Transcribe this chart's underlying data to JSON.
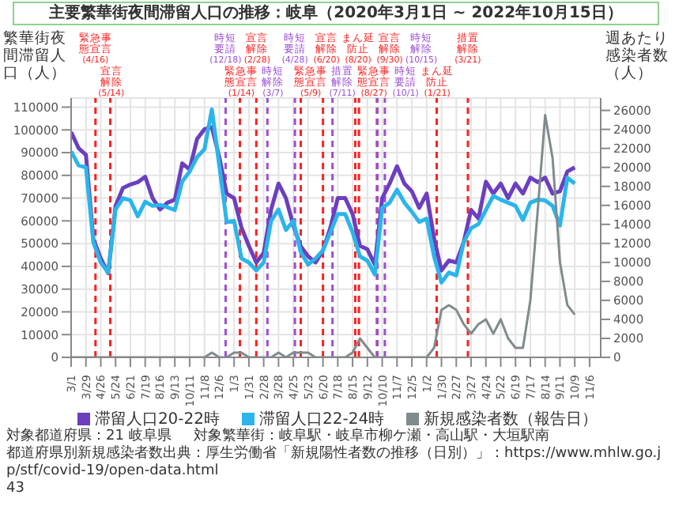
{
  "chart_data": {
    "type": "line",
    "title": "主要繁華街夜間滞留人口の推移：岐阜（2020年3月1日 ~ 2022年10月15日）",
    "ylabel": "繁華街夜間滞留人口（人）",
    "y2label": "週あたり感染者数（人）",
    "x": [
      "2020-03-01",
      "2020-03-15",
      "2020-03-29",
      "2020-04-12",
      "2020-04-26",
      "2020-05-10",
      "2020-05-24",
      "2020-06-07",
      "2020-06-21",
      "2020-07-05",
      "2020-07-19",
      "2020-08-02",
      "2020-08-16",
      "2020-08-30",
      "2020-09-13",
      "2020-09-27",
      "2020-10-11",
      "2020-10-25",
      "2020-11-08",
      "2020-11-22",
      "2020-12-06",
      "2020-12-20",
      "2021-01-03",
      "2021-01-17",
      "2021-01-31",
      "2021-02-14",
      "2021-02-28",
      "2021-03-14",
      "2021-03-28",
      "2021-04-11",
      "2021-04-25",
      "2021-05-09",
      "2021-05-23",
      "2021-06-06",
      "2021-06-20",
      "2021-07-04",
      "2021-07-18",
      "2021-08-01",
      "2021-08-15",
      "2021-08-29",
      "2021-09-12",
      "2021-09-26",
      "2021-10-10",
      "2021-10-24",
      "2021-11-07",
      "2021-11-21",
      "2021-12-05",
      "2021-12-19",
      "2022-01-02",
      "2022-01-16",
      "2022-01-30",
      "2022-02-13",
      "2022-02-27",
      "2022-03-13",
      "2022-03-27",
      "2022-04-10",
      "2022-04-24",
      "2022-05-08",
      "2022-05-22",
      "2022-06-05",
      "2022-06-19",
      "2022-07-03",
      "2022-07-17",
      "2022-07-31",
      "2022-08-14",
      "2022-08-28",
      "2022-09-11",
      "2022-09-25",
      "2022-10-09"
    ],
    "series": [
      {
        "name": "滞留人口20-22時",
        "color": "#6b3fbf",
        "values": [
          99000,
          92000,
          89000,
          52000,
          43500,
          37000,
          66600,
          74500,
          76000,
          77000,
          79400,
          70000,
          65000,
          68000,
          69300,
          85300,
          82600,
          96000,
          100300,
          101200,
          88000,
          72000,
          70000,
          57000,
          49000,
          41700,
          46000,
          65000,
          76400,
          70000,
          58000,
          48800,
          44400,
          41700,
          47000,
          57000,
          70000,
          70000,
          63000,
          49000,
          47500,
          40800,
          70000,
          76400,
          84000,
          76400,
          73000,
          65700,
          72000,
          52400,
          38200,
          42600,
          41700,
          50600,
          64800,
          61000,
          77200,
          72000,
          76400,
          70000,
          76400,
          72000,
          79000,
          77000,
          79000,
          72000,
          73000,
          81700,
          83500
        ]
      },
      {
        "name": "滞留人口22-24時",
        "color": "#2bb5ea",
        "values": [
          90600,
          84400,
          83500,
          50600,
          41700,
          37300,
          65000,
          70000,
          69000,
          62000,
          68400,
          66600,
          67000,
          66000,
          64800,
          77300,
          81700,
          88000,
          91500,
          109000,
          84400,
          59500,
          60000,
          43500,
          41700,
          38200,
          41700,
          60000,
          65000,
          56000,
          60000,
          46200,
          40800,
          43500,
          47000,
          55000,
          63000,
          63000,
          55000,
          44400,
          42500,
          36400,
          65700,
          68000,
          73700,
          68000,
          64000,
          59500,
          61000,
          44400,
          32900,
          37300,
          36000,
          50600,
          56800,
          58600,
          64800,
          71000,
          69300,
          68000,
          66600,
          60400,
          68000,
          69300,
          69000,
          66600,
          58000,
          79000,
          76400
        ]
      },
      {
        "name": "新規感染者数（報告日）",
        "color": "#808b8d",
        "axis": "y2",
        "values": [
          0,
          0,
          0,
          0,
          0,
          0,
          0,
          0,
          0,
          0,
          0,
          0,
          0,
          0,
          0,
          0,
          0,
          0,
          0,
          500,
          0,
          0,
          500,
          500,
          0,
          0,
          0,
          0,
          500,
          0,
          500,
          500,
          500,
          0,
          0,
          0,
          0,
          0,
          500,
          2000,
          1000,
          0,
          0,
          0,
          0,
          0,
          0,
          0,
          0,
          1000,
          5000,
          5500,
          5000,
          3500,
          2500,
          3500,
          4000,
          2500,
          4000,
          2000,
          1000,
          1000,
          6000,
          15500,
          25500,
          21000,
          10000,
          5500,
          4500
        ]
      }
    ],
    "xlim": [
      "2020-03-01",
      "2022-11-27"
    ],
    "xticks": [
      {
        "value": "2020-03-01",
        "label": "3/1"
      },
      {
        "value": "2020-03-29",
        "label": "3/29"
      },
      {
        "value": "2020-04-26",
        "label": "4/26"
      },
      {
        "value": "2020-05-24",
        "label": "5/24"
      },
      {
        "value": "2020-06-21",
        "label": "6/21"
      },
      {
        "value": "2020-07-19",
        "label": "7/19"
      },
      {
        "value": "2020-08-16",
        "label": "8/16"
      },
      {
        "value": "2020-09-13",
        "label": "9/13"
      },
      {
        "value": "2020-10-11",
        "label": "10/11"
      },
      {
        "value": "2020-11-08",
        "label": "11/8"
      },
      {
        "value": "2020-12-06",
        "label": "12/6"
      },
      {
        "value": "2021-01-03",
        "label": "1/3"
      },
      {
        "value": "2021-01-31",
        "label": "1/31"
      },
      {
        "value": "2021-02-28",
        "label": "2/28"
      },
      {
        "value": "2021-03-28",
        "label": "3/28"
      },
      {
        "value": "2021-04-25",
        "label": "4/25"
      },
      {
        "value": "2021-05-23",
        "label": "5/23"
      },
      {
        "value": "2021-06-20",
        "label": "6/20"
      },
      {
        "value": "2021-07-18",
        "label": "7/18"
      },
      {
        "value": "2021-08-15",
        "label": "8/15"
      },
      {
        "value": "2021-09-12",
        "label": "9/12"
      },
      {
        "value": "2021-10-10",
        "label": "10/10"
      },
      {
        "value": "2021-11-07",
        "label": "11/7"
      },
      {
        "value": "2021-12-05",
        "label": "12/5"
      },
      {
        "value": "2022-01-02",
        "label": "1/2"
      },
      {
        "value": "2022-01-30",
        "label": "1/30"
      },
      {
        "value": "2022-02-27",
        "label": "2/27"
      },
      {
        "value": "2022-03-27",
        "label": "3/27"
      },
      {
        "value": "2022-04-24",
        "label": "4/24"
      },
      {
        "value": "2022-05-22",
        "label": "5/22"
      },
      {
        "value": "2022-06-19",
        "label": "6/19"
      },
      {
        "value": "2022-07-17",
        "label": "7/17"
      },
      {
        "value": "2022-08-14",
        "label": "8/14"
      },
      {
        "value": "2022-09-11",
        "label": "9/11"
      },
      {
        "value": "2022-10-09",
        "label": "10/9"
      },
      {
        "value": "2022-11-06",
        "label": "11/6"
      }
    ],
    "ylim": [
      0,
      114000
    ],
    "yticks": [
      0,
      10000,
      20000,
      30000,
      40000,
      50000,
      60000,
      70000,
      80000,
      90000,
      100000,
      110000
    ],
    "y2lim": [
      0,
      27300
    ],
    "y2ticks": [
      0,
      2000,
      4000,
      6000,
      8000,
      10000,
      12000,
      14000,
      16000,
      18000,
      20000,
      22000,
      24000,
      26000
    ],
    "ref_lines": [
      {
        "axis": "x",
        "value": "2020-04-16",
        "label": "緊急事態宣言(4/16)",
        "color": "#ff2020",
        "line_style": "dashed"
      },
      {
        "axis": "x",
        "value": "2020-05-14",
        "label": "宣言解除(5/14)",
        "color": "#ff2020",
        "line_style": "dashed"
      },
      {
        "axis": "x",
        "value": "2020-12-18",
        "label": "時短要請(12/18)",
        "color": "#9b4fd8",
        "line_style": "dashed"
      },
      {
        "axis": "x",
        "value": "2021-01-14",
        "label": "緊急事態宣言(1/14)",
        "color": "#ff2020",
        "line_style": "dashed"
      },
      {
        "axis": "x",
        "value": "2021-02-14",
        "label": "宣言解除(2/28)",
        "color": "#ff2020",
        "line_style": "dashed"
      },
      {
        "axis": "x",
        "value": "2021-03-07",
        "label": "時短解除(3/7)",
        "color": "#9b4fd8",
        "line_style": "dashed"
      },
      {
        "axis": "x",
        "value": "2021-04-28",
        "label": "時短要請(4/28)",
        "color": "#9b4fd8",
        "line_style": "dashed"
      },
      {
        "axis": "x",
        "value": "2021-05-09",
        "label": "緊急事態宣言(5/9)",
        "color": "#ff2020",
        "line_style": "dashed"
      },
      {
        "axis": "x",
        "value": "2021-06-20",
        "label": "宣言解除(6/20)",
        "color": "#ff2020",
        "line_style": "dashed"
      },
      {
        "axis": "x",
        "value": "2021-07-08",
        "label": "措置解除(7/11)",
        "color": "#9b4fd8",
        "line_style": "dashed"
      },
      {
        "axis": "x",
        "value": "2021-08-20",
        "label": "まん延防止(8/20)",
        "color": "#ff2020",
        "line_style": "dashed"
      },
      {
        "axis": "x",
        "value": "2021-08-27",
        "label": "緊急事態宣言(8/27)",
        "color": "#ff2020",
        "line_style": "dashed"
      },
      {
        "axis": "x",
        "value": "2021-09-30",
        "label": "宣言解除(9/30)",
        "color": "#ff2020",
        "line_style": "dashed"
      },
      {
        "axis": "x",
        "value": "2021-10-01",
        "label": "時短要請(10/1)",
        "color": "#9b4fd8",
        "line_style": "dashed"
      },
      {
        "axis": "x",
        "value": "2021-10-15",
        "label": "時短解除(10/15)",
        "color": "#9b4fd8",
        "line_style": "dashed"
      },
      {
        "axis": "x",
        "value": "2022-01-21",
        "label": "まん延防止(1/21)",
        "color": "#ff2020",
        "line_style": "dashed"
      },
      {
        "axis": "x",
        "value": "2022-03-21",
        "label": "措置解除(3/21)",
        "color": "#ff2020",
        "line_style": "dashed"
      }
    ],
    "annotations": [
      "対象都道府県：21 岐阜県",
      "対象繁華街：岐阜駅・岐阜市柳ケ瀬・高山駅・大垣駅南",
      "都道府県別新規感染者数出典：厚生労働省「新規陽性者数の推移（日別）」：https://www.mhlw.go.jp/stf/covid-19/open-data.html",
      "43"
    ],
    "grid": true,
    "legend": "bottom",
    "marker": "none"
  }
}
